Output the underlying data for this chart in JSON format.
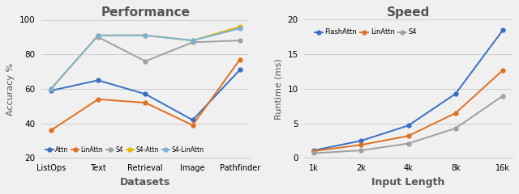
{
  "perf_title": "Performance",
  "perf_xlabel": "Datasets",
  "perf_ylabel": "Accuracy %",
  "perf_categories": [
    "ListOps",
    "Text",
    "Retrieval",
    "Image",
    "Pathfinder"
  ],
  "perf_ylim": [
    20,
    100
  ],
  "perf_yticks": [
    20,
    40,
    60,
    80,
    100
  ],
  "perf_series": [
    {
      "label": "Attn",
      "color": "#3a6fc4",
      "marker": "o",
      "values": [
        59,
        65,
        57,
        42,
        71
      ]
    },
    {
      "label": "LinAttn",
      "color": "#e07020",
      "marker": "o",
      "values": [
        36,
        54,
        52,
        39,
        77
      ]
    },
    {
      "label": "S4",
      "color": "#a0a0a0",
      "marker": "o",
      "values": [
        null,
        90,
        76,
        87,
        88
      ]
    },
    {
      "label": "S4-Attn",
      "color": "#e8b800",
      "marker": "o",
      "values": [
        60,
        91,
        91,
        88,
        96
      ]
    },
    {
      "label": "S4-LinAttn",
      "color": "#7ab0d8",
      "marker": "o",
      "values": [
        60,
        91,
        91,
        88,
        95
      ]
    }
  ],
  "speed_title": "Speed",
  "speed_xlabel": "Input Length",
  "speed_ylabel": "Runtime (ms)",
  "speed_categories": [
    "1k",
    "2k",
    "4k",
    "8k",
    "16k"
  ],
  "speed_ylim": [
    0,
    20
  ],
  "speed_yticks": [
    0,
    5,
    10,
    15,
    20
  ],
  "speed_series": [
    {
      "label": "FlashAttn",
      "color": "#3a6fc4",
      "marker": "o",
      "values": [
        1.1,
        2.5,
        4.7,
        9.3,
        18.5
      ]
    },
    {
      "label": "LinAttn",
      "color": "#e07020",
      "marker": "o",
      "values": [
        1.0,
        1.9,
        3.2,
        6.5,
        12.7
      ]
    },
    {
      "label": "S4",
      "color": "#a0a0a0",
      "marker": "o",
      "values": [
        0.7,
        1.1,
        2.1,
        4.3,
        9.0
      ]
    }
  ],
  "bg_color": "#f0f0f0",
  "title_color": "#555555",
  "label_color": "#555555"
}
